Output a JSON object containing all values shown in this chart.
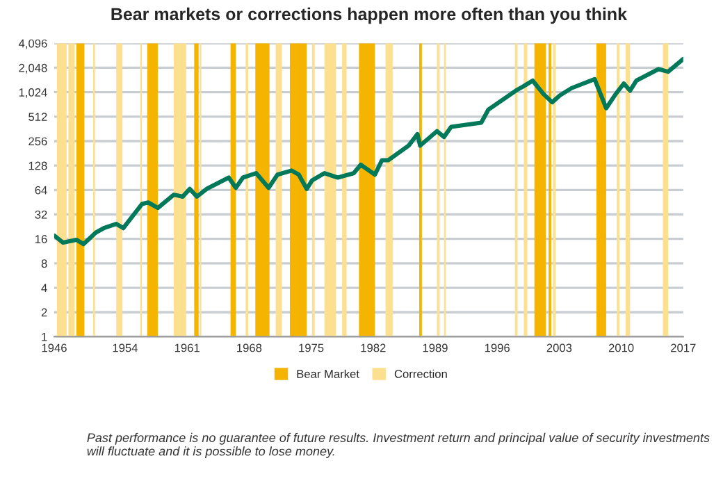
{
  "chart_data": {
    "type": "line",
    "title": "Bear markets or corrections happen more often than you think",
    "x": [
      1946,
      1947,
      1948.5,
      1949.3,
      1950.7,
      1951.6,
      1953,
      1953.8,
      1955.9,
      1956.6,
      1957.7,
      1959.5,
      1960.5,
      1961.3,
      1962.1,
      1963.2,
      1965.7,
      1966.5,
      1967.3,
      1968.8,
      1970.2,
      1971.2,
      1972.8,
      1973.6,
      1974.5,
      1975.1,
      1976.5,
      1978,
      1979.8,
      1980.6,
      1982.2,
      1983,
      1983.7,
      1986,
      1987,
      1987.3,
      1989.2,
      1990,
      1990.8,
      1994.2,
      1995,
      1998.1,
      1998.9,
      2000,
      2001.2,
      2002.2,
      2003.1,
      2004.4,
      2007,
      2008.3,
      2009.4,
      2010.3,
      2011,
      2011.7,
      2014.2,
      2015.3,
      2017
    ],
    "series": [
      {
        "color": "#00785a",
        "values": [
          17.6,
          14.4,
          15.6,
          13.8,
          19.2,
          21.7,
          24.5,
          21.7,
          43,
          45,
          38.5,
          56,
          53,
          66,
          53,
          66,
          91,
          68,
          91,
          103,
          68,
          99,
          111,
          99,
          66,
          84,
          103,
          91,
          103,
          131,
          99,
          149,
          149,
          225,
          312,
          225,
          339,
          288,
          383,
          432,
          624,
          1070,
          1200,
          1420,
          980,
          770,
          940,
          1150,
          1480,
          650,
          980,
          1310,
          1070,
          1420,
          1970,
          1830,
          2620
        ]
      }
    ],
    "log": "y",
    "xlim": [
      1946,
      2017
    ],
    "xticks": [
      1946,
      1954,
      1961,
      1968,
      1975,
      1982,
      1989,
      1996,
      2003,
      2010,
      2017
    ],
    "ylim": [
      1,
      4096
    ],
    "yticks": [
      1,
      2,
      4,
      8,
      16,
      32,
      64,
      128,
      256,
      512,
      {
        "value": 1024,
        "label": "1,024"
      },
      {
        "value": 2048,
        "label": "2,048"
      },
      {
        "value": 4096,
        "label": "4,096"
      }
    ],
    "grid": "y",
    "legend": "bottom",
    "line_style": "solid",
    "marker": "none",
    "bands": [
      {
        "axis": "x",
        "from": 1948.5,
        "to": 1949.4,
        "label": "Bear Market",
        "color": "#f5b400"
      },
      {
        "axis": "x",
        "from": 1956.5,
        "to": 1957.7,
        "color": "#f5b400"
      },
      {
        "axis": "x",
        "from": 1961.8,
        "to": 1962.3,
        "color": "#f5b400"
      },
      {
        "axis": "x",
        "from": 1965.9,
        "to": 1966.5,
        "color": "#f5b400"
      },
      {
        "axis": "x",
        "from": 1968.7,
        "to": 1970.3,
        "color": "#f5b400"
      },
      {
        "axis": "x",
        "from": 1972.6,
        "to": 1974.5,
        "color": "#f5b400"
      },
      {
        "axis": "x",
        "from": 1980.4,
        "to": 1982.2,
        "color": "#f5b400"
      },
      {
        "axis": "x",
        "from": 1987.2,
        "to": 1987.5,
        "color": "#f5b400"
      },
      {
        "axis": "x",
        "from": 2000.2,
        "to": 2001.5,
        "color": "#f5b400"
      },
      {
        "axis": "x",
        "from": 2001.8,
        "to": 2002.1,
        "color": "#f5b400"
      },
      {
        "axis": "x",
        "from": 2007.2,
        "to": 2008.3,
        "color": "#f5b400"
      },
      {
        "axis": "x",
        "from": 1946.3,
        "to": 1947.4,
        "label": "Correction",
        "color": "#fddf90"
      },
      {
        "axis": "x",
        "from": 1947.6,
        "to": 1948.3,
        "color": "#fddf90"
      },
      {
        "axis": "x",
        "from": 1950.4,
        "to": 1950.6,
        "color": "#fddf90"
      },
      {
        "axis": "x",
        "from": 1953,
        "to": 1953.7,
        "color": "#fddf90"
      },
      {
        "axis": "x",
        "from": 1955.7,
        "to": 1955.9,
        "color": "#fddf90"
      },
      {
        "axis": "x",
        "from": 1959.5,
        "to": 1960.9,
        "color": "#fddf90"
      },
      {
        "axis": "x",
        "from": 1962.4,
        "to": 1962.6,
        "color": "#fddf90"
      },
      {
        "axis": "x",
        "from": 1967.6,
        "to": 1967.9,
        "color": "#fddf90"
      },
      {
        "axis": "x",
        "from": 1971,
        "to": 1971.7,
        "color": "#fddf90"
      },
      {
        "axis": "x",
        "from": 1975.1,
        "to": 1975.4,
        "color": "#fddf90"
      },
      {
        "axis": "x",
        "from": 1976.5,
        "to": 1977.8,
        "color": "#fddf90"
      },
      {
        "axis": "x",
        "from": 1978.5,
        "to": 1979,
        "color": "#fddf90"
      },
      {
        "axis": "x",
        "from": 1983.4,
        "to": 1984.2,
        "color": "#fddf90"
      },
      {
        "axis": "x",
        "from": 1989.2,
        "to": 1989.5,
        "color": "#fddf90"
      },
      {
        "axis": "x",
        "from": 1990,
        "to": 1990.2,
        "color": "#fddf90"
      },
      {
        "axis": "x",
        "from": 1998,
        "to": 1998.3,
        "color": "#fddf90"
      },
      {
        "axis": "x",
        "from": 1999,
        "to": 1999.4,
        "color": "#fddf90"
      },
      {
        "axis": "x",
        "from": 2002.3,
        "to": 2002.6,
        "color": "#fddf90"
      },
      {
        "axis": "x",
        "from": 2009.5,
        "to": 2009.8,
        "color": "#fddf90"
      },
      {
        "axis": "x",
        "from": 2010.5,
        "to": 2011,
        "color": "#fddf90"
      },
      {
        "axis": "x",
        "from": 2014.7,
        "to": 2015.3,
        "color": "#fddf90"
      }
    ],
    "annotations": [
      "Past performance is no guarantee of future results. Investment return and principal value of security investments will fluctuate and it is possible to lose money."
    ]
  }
}
